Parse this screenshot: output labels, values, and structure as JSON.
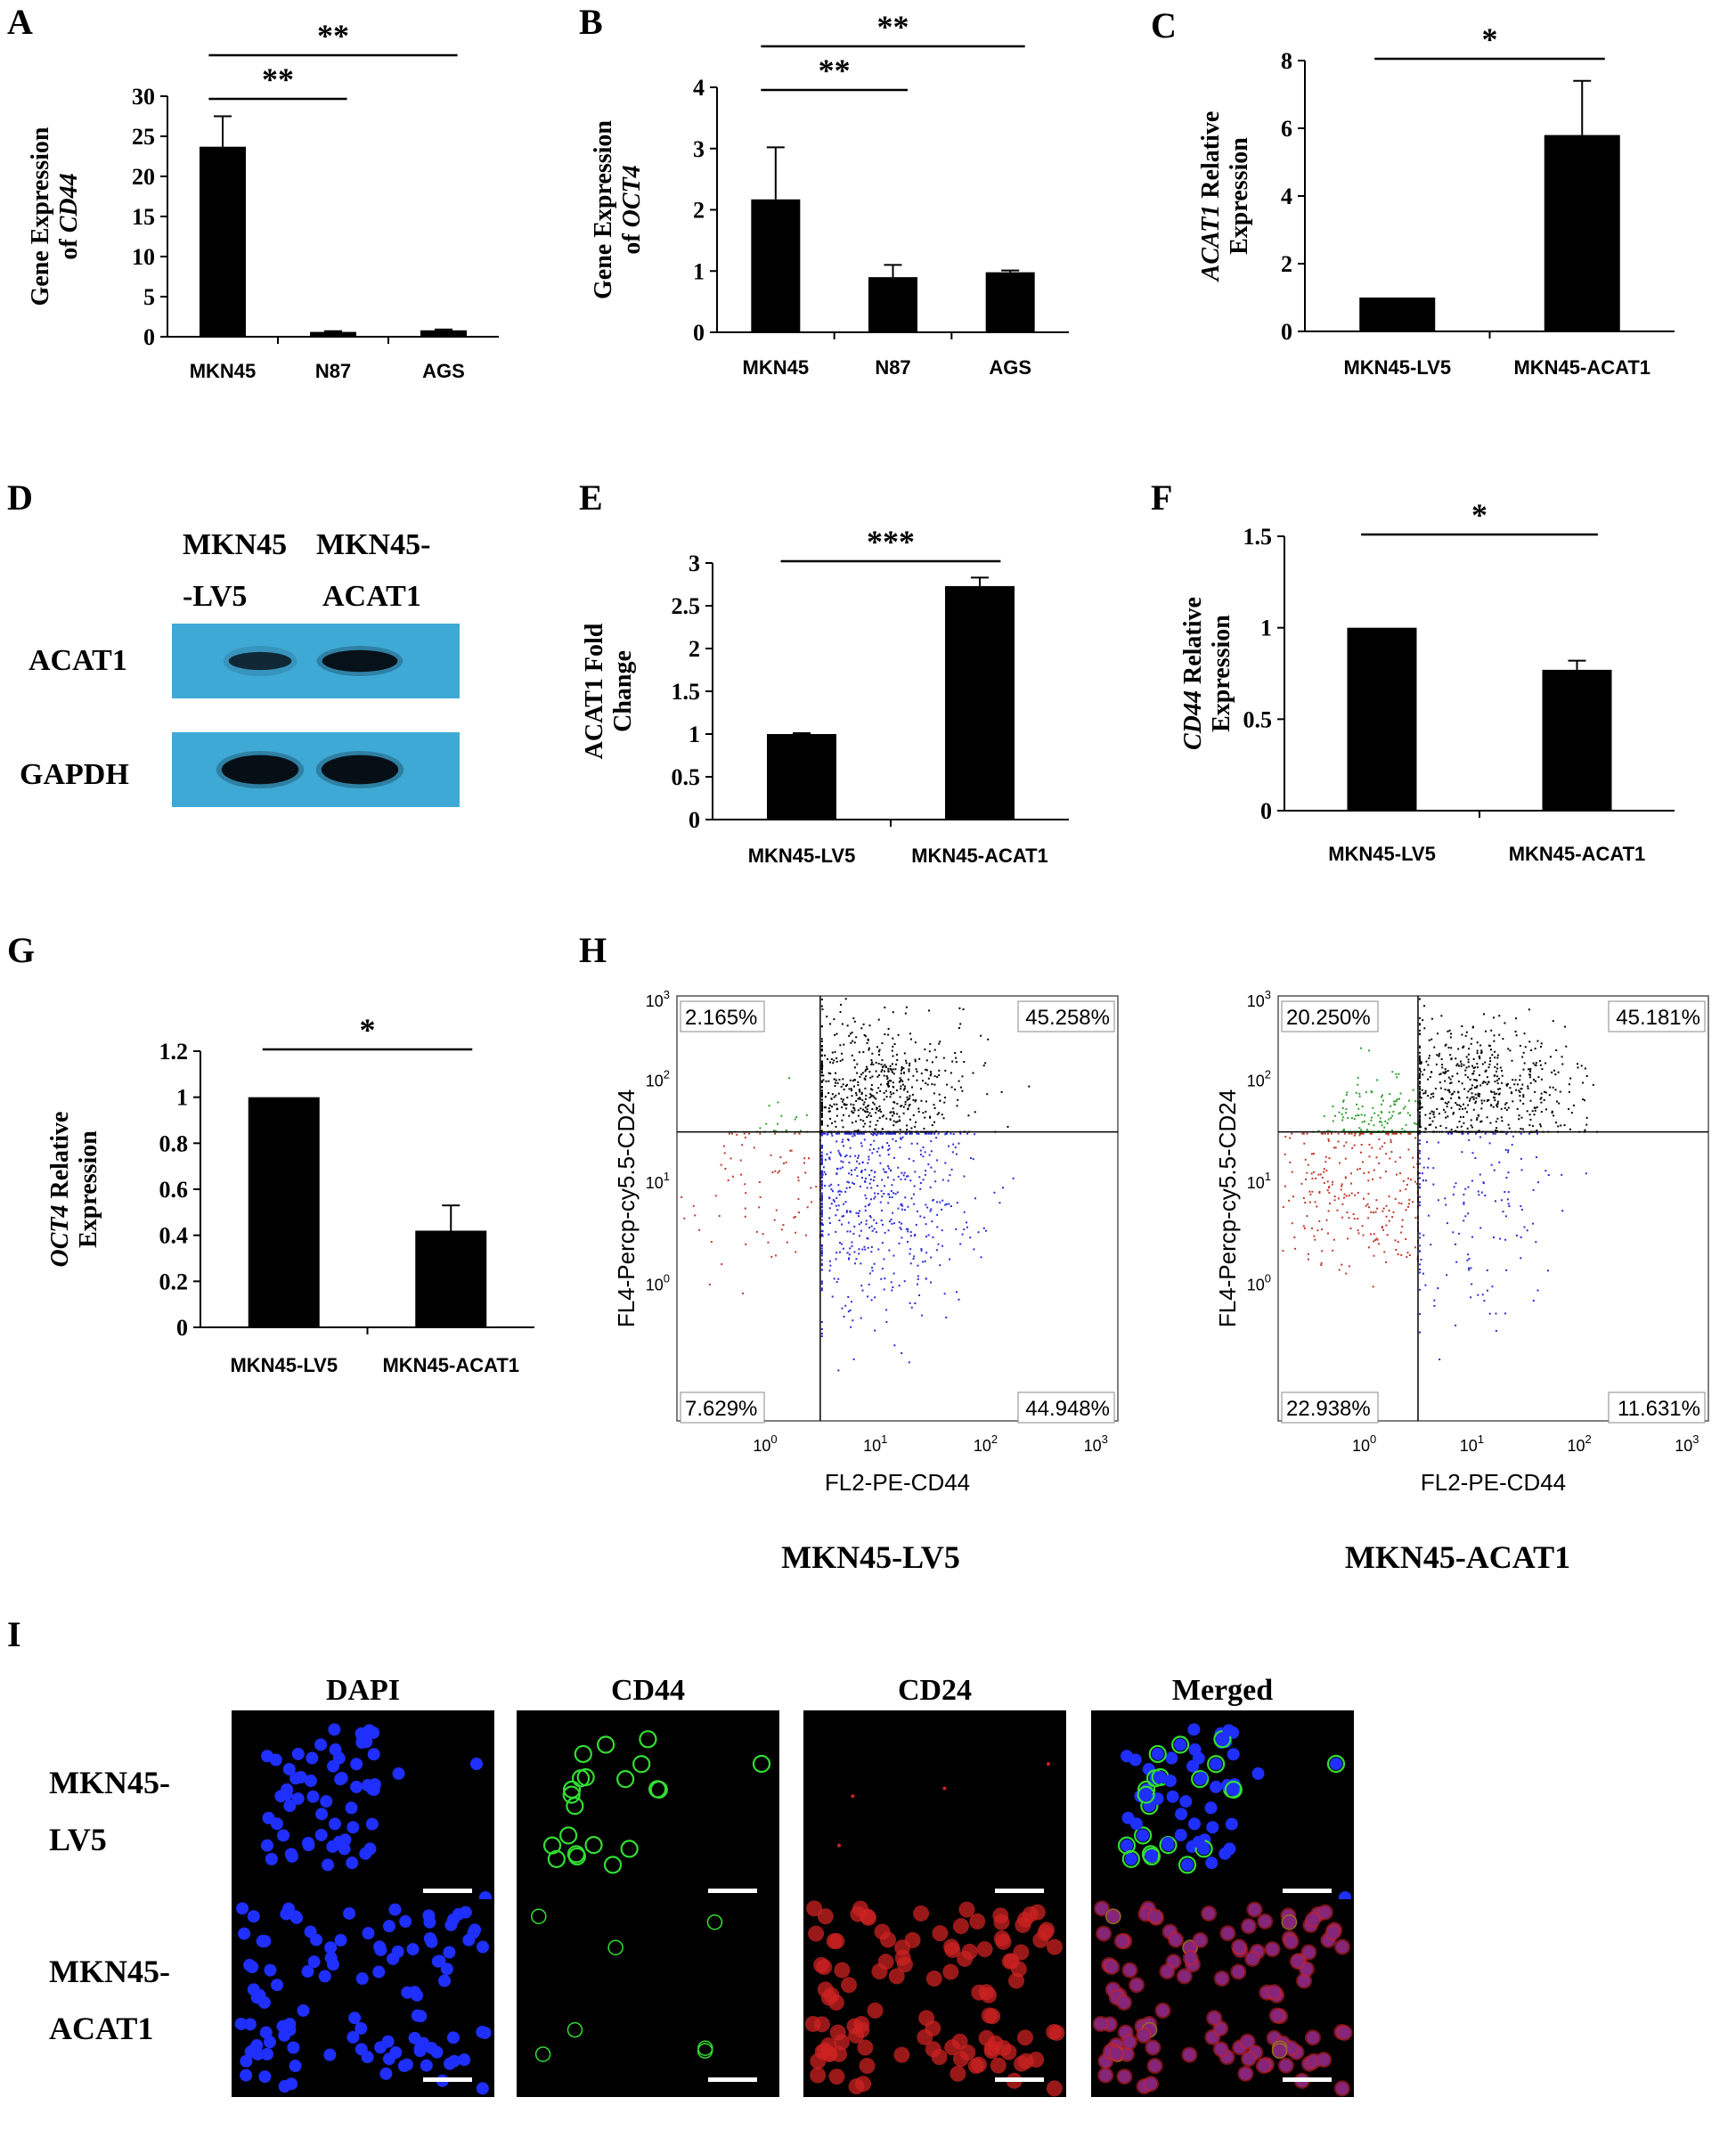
{
  "panels": {
    "A": "A",
    "B": "B",
    "C": "C",
    "D": "D",
    "E": "E",
    "F": "F",
    "G": "G",
    "H": "H",
    "I": "I"
  },
  "chart_data": [
    {
      "id": "A",
      "type": "bar",
      "categories": [
        "MKN45",
        "N87",
        "AGS"
      ],
      "values": [
        23.7,
        0.6,
        0.8
      ],
      "errors": [
        3.8,
        0.1,
        0.1
      ],
      "ylabel_line1": "Gene Expression",
      "ylabel_line2_prefix": "of ",
      "ylabel_line2_italic": "CD44",
      "yticks": [
        0,
        5,
        10,
        15,
        20,
        25,
        30
      ],
      "ylim": [
        0,
        30
      ],
      "significance": [
        {
          "from": 0,
          "to": 1,
          "label": "**"
        },
        {
          "from": 0,
          "to": 2,
          "label": "**"
        }
      ]
    },
    {
      "id": "B",
      "type": "bar",
      "categories": [
        "MKN45",
        "N87",
        "AGS"
      ],
      "values": [
        2.17,
        0.9,
        0.98
      ],
      "errors": [
        0.85,
        0.2,
        0.03
      ],
      "ylabel_line1": "Gene Expression",
      "ylabel_line2_prefix": "of ",
      "ylabel_line2_italic": "OCT4",
      "yticks": [
        0,
        1,
        2,
        3,
        4
      ],
      "ylim": [
        0,
        4
      ],
      "significance": [
        {
          "from": 0,
          "to": 1,
          "label": "**"
        },
        {
          "from": 0,
          "to": 2,
          "label": "**"
        }
      ]
    },
    {
      "id": "C",
      "type": "bar",
      "categories": [
        "MKN45-LV5",
        "MKN45-ACAT1"
      ],
      "values": [
        1.0,
        5.8
      ],
      "errors": [
        0.0,
        1.6
      ],
      "ylabel_line1_italic": "ACAT1",
      "ylabel_line1_suffix": " Relative",
      "ylabel_line2": "Expression",
      "yticks": [
        0,
        2,
        4,
        6,
        8
      ],
      "ylim": [
        0,
        8
      ],
      "significance": [
        {
          "from": 0,
          "to": 1,
          "label": "*"
        }
      ]
    },
    {
      "id": "E",
      "type": "bar",
      "categories": [
        "MKN45-LV5",
        "MKN45-ACAT1"
      ],
      "values": [
        1.0,
        2.73
      ],
      "errors": [
        0.01,
        0.1
      ],
      "ylabel_line1": "ACAT1  Fold",
      "ylabel_line2": "Change",
      "yticks": [
        0,
        0.5,
        1,
        1.5,
        2,
        2.5,
        3
      ],
      "ylim": [
        0,
        3
      ],
      "significance": [
        {
          "from": 0,
          "to": 1,
          "label": "***"
        }
      ]
    },
    {
      "id": "F",
      "type": "bar",
      "categories": [
        "MKN45-LV5",
        "MKN45-ACAT1"
      ],
      "values": [
        1.0,
        0.77
      ],
      "errors": [
        0.0,
        0.05
      ],
      "ylabel_line1_italic": "CD44",
      "ylabel_line1_suffix": " Relative",
      "ylabel_line2": "Expression",
      "yticks": [
        0,
        0.5,
        1,
        1.5
      ],
      "ylim": [
        0,
        1.5
      ],
      "significance": [
        {
          "from": 0,
          "to": 1,
          "label": "*"
        }
      ]
    },
    {
      "id": "G",
      "type": "bar",
      "categories": [
        "MKN45-LV5",
        "MKN45-ACAT1"
      ],
      "values": [
        1.0,
        0.42
      ],
      "errors": [
        0.0,
        0.11
      ],
      "ylabel_line1_italic": "OCT4",
      "ylabel_line1_suffix": " Relative",
      "ylabel_line2": "Expression",
      "yticks": [
        0,
        0.2,
        0.4,
        0.6,
        0.8,
        1,
        1.2
      ],
      "ylim": [
        0,
        1.2
      ],
      "significance": [
        {
          "from": 0,
          "to": 1,
          "label": "*"
        }
      ]
    }
  ],
  "blot": {
    "col1_line1": "MKN45",
    "col1_line2": "-LV5",
    "col2_line1": "MKN45-",
    "col2_line2": "ACAT1",
    "row1": "ACAT1",
    "row2": "GAPDH",
    "band_color": "#3fa9d6",
    "band_intensity_acat1": [
      0.45,
      0.85
    ],
    "band_intensity_gapdh": [
      0.9,
      0.9
    ]
  },
  "flow": {
    "xlabel": "FL2-PE-CD44",
    "ylabel": "FL4-Percp-cy5.5-CD24",
    "tick_base": "10",
    "tick_exps": [
      "0",
      "1",
      "2",
      "3"
    ],
    "plots": [
      {
        "title": "MKN45-LV5",
        "ul": "2.165%",
        "ur": "45.258%",
        "ll": "7.629%",
        "lr": "44.948%"
      },
      {
        "title": "MKN45-ACAT1",
        "ul": "20.250%",
        "ur": "45.181%",
        "ll": "22.938%",
        "lr": "11.631%"
      }
    ],
    "colors": {
      "ur": "#000000",
      "ul": "#2ea02e",
      "ll": "#c0392b",
      "lr": "#2b2bd6"
    }
  },
  "microscopy": {
    "columns": [
      "DAPI",
      "CD44",
      "CD24",
      "Merged"
    ],
    "rows": [
      {
        "line1": "MKN45-",
        "line2": "LV5"
      },
      {
        "line1": "MKN45-",
        "line2": "ACAT1"
      }
    ],
    "colors": {
      "dapi": "#1f2fff",
      "cd44": "#33dd33",
      "cd24": "#cc2222"
    }
  }
}
